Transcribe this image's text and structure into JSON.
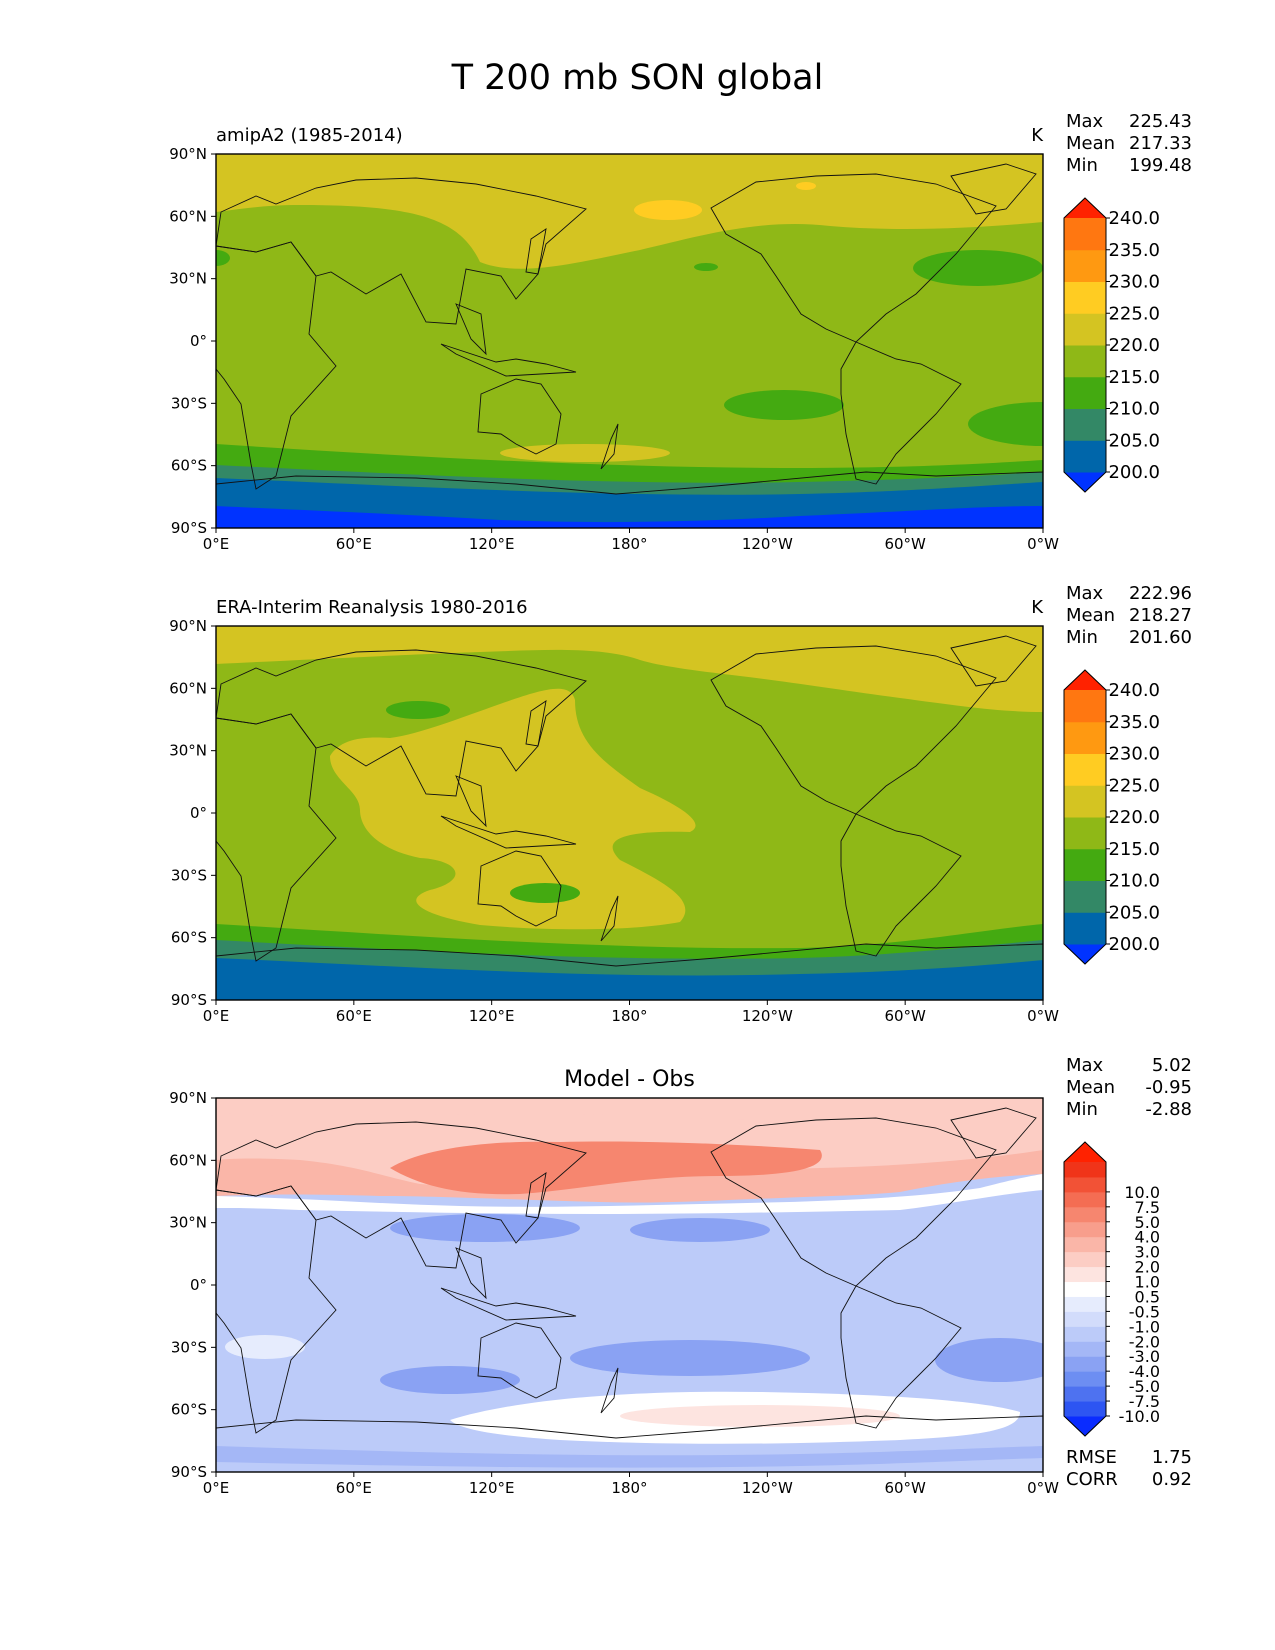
{
  "title": "T 200 mb SON global",
  "lon_ticks": [
    "0°E",
    "60°E",
    "120°E",
    "180°",
    "120°W",
    "60°W",
    "0°W"
  ],
  "lat_ticks": [
    "90°N",
    "60°N",
    "30°N",
    "0°",
    "30°S",
    "60°S",
    "90°S"
  ],
  "panels": [
    {
      "id": "model",
      "left_title": "amipA2 (1985-2014)",
      "center_title": "",
      "units": "K",
      "stats": [
        {
          "label": "Max",
          "value": "225.43"
        },
        {
          "label": "Mean",
          "value": "217.33"
        },
        {
          "label": "Min",
          "value": "199.48"
        }
      ],
      "colorbar": {
        "colors": [
          "#0033ff",
          "#0066aa",
          "#338866",
          "#44aa11",
          "#8fb817",
          "#d4c422",
          "#ffcc22",
          "#ff9911",
          "#ff7711",
          "#ff2200"
        ],
        "labels": [
          "200.0",
          "205.0",
          "210.0",
          "215.0",
          "220.0",
          "225.0",
          "230.0",
          "235.0",
          "240.0"
        ]
      }
    },
    {
      "id": "obs",
      "left_title": "ERA-Interim Reanalysis 1980-2016",
      "center_title": "",
      "units": "K",
      "stats": [
        {
          "label": "Max",
          "value": "222.96"
        },
        {
          "label": "Mean",
          "value": "218.27"
        },
        {
          "label": "Min",
          "value": "201.60"
        }
      ],
      "colorbar": {
        "colors": [
          "#0033ff",
          "#0066aa",
          "#338866",
          "#44aa11",
          "#8fb817",
          "#d4c422",
          "#ffcc22",
          "#ff9911",
          "#ff7711",
          "#ff2200"
        ],
        "labels": [
          "200.0",
          "205.0",
          "210.0",
          "215.0",
          "220.0",
          "225.0",
          "230.0",
          "235.0",
          "240.0"
        ]
      }
    },
    {
      "id": "diff",
      "left_title": "",
      "center_title": "Model - Obs",
      "units": "",
      "stats": [
        {
          "label": "Max",
          "value": "5.02"
        },
        {
          "label": "Mean",
          "value": "-0.95"
        },
        {
          "label": "Min",
          "value": "-2.88"
        }
      ],
      "colorbar": {
        "colors": [
          "#0a2cff",
          "#2d55f2",
          "#4e72f0",
          "#6d8ef2",
          "#8aa2f3",
          "#a4b7f6",
          "#bccbf9",
          "#d2dcfb",
          "#e6ecfd",
          "#ffffff",
          "#fde4e0",
          "#fccdc4",
          "#fab6a8",
          "#f89e8c",
          "#f6866f",
          "#f46d53",
          "#f25236",
          "#f03419",
          "#ff2200"
        ],
        "labels": [
          "-10.0",
          "-7.5",
          "-5.0",
          "-4.0",
          "-3.0",
          "-2.0",
          "-1.0",
          "-0.5",
          "0.5",
          "1.0",
          "2.0",
          "3.0",
          "4.0",
          "5.0",
          "7.5",
          "10.0"
        ]
      },
      "extra_stats": [
        {
          "label": "RMSE",
          "value": "1.75"
        },
        {
          "label": "CORR",
          "value": "0.92"
        }
      ]
    }
  ]
}
